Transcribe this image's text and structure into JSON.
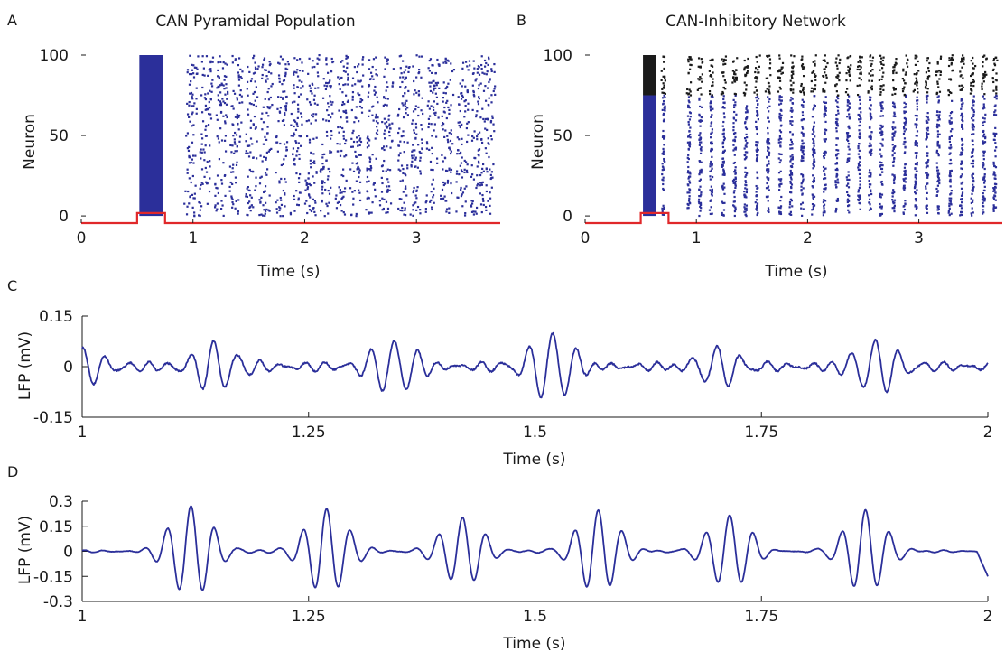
{
  "figure": {
    "colors": {
      "excitatory": "#2b2f9a",
      "inhibitory": "#1a1a1a",
      "stimulus": "#e0282a",
      "lfp": "#2b2f9a",
      "axis": "#1a1a1a"
    }
  },
  "chart_data": [
    {
      "panel": "A",
      "type": "scatter",
      "title": "CAN Pyramidal Population",
      "xlabel": "Time (s)",
      "ylabel": "Neuron",
      "xlim": [
        0,
        3.75
      ],
      "ylim": [
        -5,
        100
      ],
      "xticks": [
        "0",
        "1",
        "2",
        "3"
      ],
      "xtick_values": [
        0,
        1,
        2,
        3
      ],
      "yticks": [
        "0",
        "50",
        "100"
      ],
      "ytick_values": [
        0,
        50,
        100
      ],
      "stimulus": {
        "start": 0.5,
        "end": 0.75,
        "level": -1
      },
      "series": [
        {
          "color": "excitatory",
          "neurons": [
            0,
            100
          ],
          "dense_block": [
            0.52,
            0.73
          ],
          "burst_times": [
            0.97,
            1.1,
            1.24,
            1.37,
            1.51,
            1.64,
            1.78,
            1.91,
            2.05,
            2.18,
            2.32,
            2.45,
            2.59,
            2.72,
            2.86,
            2.99,
            3.13,
            3.26,
            3.4,
            3.53,
            3.63
          ],
          "burst_jitter_s": 0.05
        }
      ]
    },
    {
      "panel": "B",
      "type": "scatter",
      "title": "CAN-Inhibitory Network",
      "xlabel": "Time (s)",
      "ylabel": "Neuron",
      "xlim": [
        0,
        3.75
      ],
      "ylim": [
        -5,
        100
      ],
      "xticks": [
        "0",
        "1",
        "2",
        "3"
      ],
      "xtick_values": [
        0,
        1,
        2,
        3
      ],
      "yticks": [
        "0",
        "50",
        "100"
      ],
      "ytick_values": [
        0,
        50,
        100
      ],
      "stimulus": {
        "start": 0.5,
        "end": 0.75,
        "level": -1
      },
      "series": [
        {
          "color": "excitatory",
          "neurons": [
            0,
            75
          ],
          "dense_block": [
            0.52,
            0.64
          ],
          "burst_times": [
            0.7,
            0.93,
            1.03,
            1.13,
            1.24,
            1.34,
            1.44,
            1.54,
            1.64,
            1.75,
            1.85,
            1.95,
            2.05,
            2.15,
            2.26,
            2.36,
            2.46,
            2.56,
            2.66,
            2.77,
            2.87,
            2.97,
            3.07,
            3.17,
            3.28,
            3.38,
            3.48,
            3.58,
            3.68
          ],
          "burst_jitter_s": 0.012
        },
        {
          "color": "inhibitory",
          "neurons": [
            75,
            100
          ],
          "dense_block": [
            0.52,
            0.64
          ],
          "burst_times": [
            0.7,
            0.93,
            1.03,
            1.13,
            1.24,
            1.34,
            1.44,
            1.54,
            1.64,
            1.75,
            1.85,
            1.95,
            2.05,
            2.15,
            2.26,
            2.36,
            2.46,
            2.56,
            2.66,
            2.77,
            2.87,
            2.97,
            3.07,
            3.17,
            3.28,
            3.38,
            3.48,
            3.58,
            3.68
          ],
          "burst_jitter_s": 0.02
        }
      ]
    },
    {
      "panel": "C",
      "type": "line",
      "xlabel": "Time (s)",
      "ylabel": "LFP (mV)",
      "xlim": [
        1,
        2
      ],
      "ylim": [
        -0.15,
        0.15
      ],
      "xticks": [
        "1",
        "1.25",
        "1.5",
        "1.75",
        "2"
      ],
      "xtick_values": [
        1,
        1.25,
        1.5,
        1.75,
        2
      ],
      "yticks": [
        "0.15",
        "0",
        "-0.15"
      ],
      "ytick_values": [
        0.15,
        0,
        -0.15
      ],
      "series": [
        {
          "color": "lfp",
          "bursts": [
            {
              "t": 1.0,
              "amp": 0.045
            },
            {
              "t": 1.145,
              "amp": 0.065
            },
            {
              "t": 1.345,
              "amp": 0.075
            },
            {
              "t": 1.52,
              "amp": 0.105
            },
            {
              "t": 1.7,
              "amp": 0.065
            },
            {
              "t": 1.875,
              "amp": 0.075
            }
          ],
          "osc_freq_hz": 38,
          "noise_amp": 0.012
        }
      ]
    },
    {
      "panel": "D",
      "type": "line",
      "xlabel": "Time (s)",
      "ylabel": "LFP (mV)",
      "xlim": [
        1,
        2
      ],
      "ylim": [
        -0.3,
        0.3
      ],
      "xticks": [
        "1",
        "1.25",
        "1.5",
        "1.75",
        "2"
      ],
      "xtick_values": [
        1,
        1.25,
        1.5,
        1.75,
        2
      ],
      "yticks": [
        "0.3",
        "0.15",
        "0",
        "-0.15",
        "-0.3"
      ],
      "ytick_values": [
        0.3,
        0.15,
        0,
        -0.15,
        -0.3
      ],
      "series": [
        {
          "color": "lfp",
          "bursts": [
            {
              "t": 1.12,
              "amp": 0.27
            },
            {
              "t": 1.27,
              "amp": 0.25
            },
            {
              "t": 1.42,
              "amp": 0.2
            },
            {
              "t": 1.57,
              "amp": 0.25
            },
            {
              "t": 1.715,
              "amp": 0.22
            },
            {
              "t": 1.865,
              "amp": 0.25
            }
          ],
          "osc_freq_hz": 38,
          "noise_amp": 0.006,
          "end_value": -0.15
        }
      ]
    }
  ]
}
